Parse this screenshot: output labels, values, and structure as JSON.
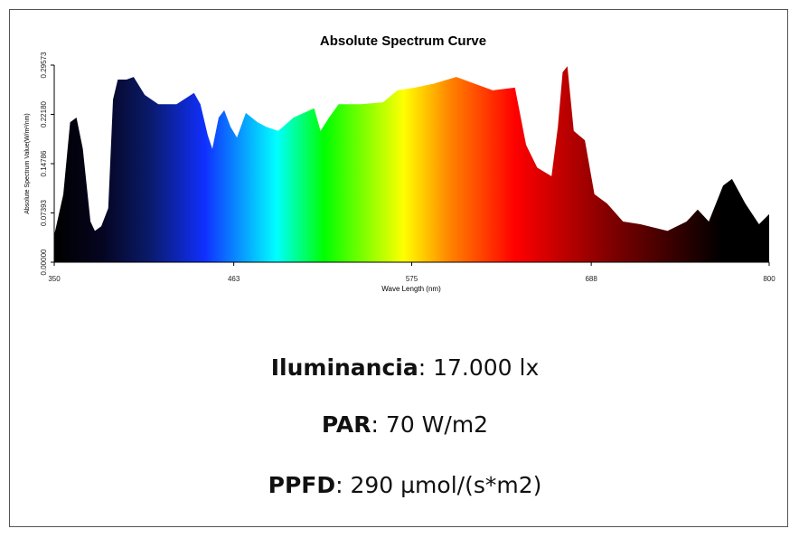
{
  "chart_data": {
    "type": "area",
    "title": "Absolute Spectrum Curve",
    "xlabel": "Wave Length (nm)",
    "ylabel": "Absolute Spectrum Value(W/m²/nm)",
    "x": [
      350,
      355.7,
      360,
      364,
      368,
      372.8,
      375.6,
      379.6,
      384,
      387,
      390,
      395.5,
      400,
      407,
      415.5,
      427,
      438,
      442,
      446.7,
      449.5,
      453.5,
      457,
      461,
      465,
      470.6,
      478,
      483.6,
      491,
      500.6,
      513.6,
      517.6,
      523,
      529,
      543,
      557,
      566,
      577,
      589,
      603,
      614.5,
      626,
      640,
      647,
      654,
      663,
      667,
      670,
      673,
      677,
      684,
      690,
      698,
      708,
      719,
      736,
      748,
      755,
      762,
      771,
      776.6,
      785,
      793.6,
      800
    ],
    "values": [
      0.0407,
      0.1017,
      0.21,
      0.217,
      0.17,
      0.061,
      0.047,
      0.054,
      0.081,
      0.244,
      0.274,
      0.274,
      0.278,
      0.251,
      0.237,
      0.237,
      0.254,
      0.237,
      0.19,
      0.17,
      0.217,
      0.228,
      0.203,
      0.187,
      0.224,
      0.21,
      0.203,
      0.197,
      0.217,
      0.231,
      0.197,
      0.217,
      0.237,
      0.237,
      0.24,
      0.258,
      0.262,
      0.268,
      0.278,
      0.268,
      0.258,
      0.262,
      0.176,
      0.142,
      0.129,
      0.203,
      0.285,
      0.294,
      0.197,
      0.183,
      0.102,
      0.088,
      0.061,
      0.057,
      0.047,
      0.061,
      0.079,
      0.061,
      0.115,
      0.125,
      0.088,
      0.057,
      0.072
    ],
    "gradient": [
      {
        "x": 350,
        "color": "#000000"
      },
      {
        "x": 380,
        "color": "#050520"
      },
      {
        "x": 410,
        "color": "#0a1a6a"
      },
      {
        "x": 445,
        "color": "#1030ff"
      },
      {
        "x": 490,
        "color": "#00ffff"
      },
      {
        "x": 520,
        "color": "#00ff00"
      },
      {
        "x": 570,
        "color": "#ffff00"
      },
      {
        "x": 600,
        "color": "#ff8000"
      },
      {
        "x": 640,
        "color": "#ff0000"
      },
      {
        "x": 700,
        "color": "#800000"
      },
      {
        "x": 770,
        "color": "#000000"
      },
      {
        "x": 800,
        "color": "#000000"
      }
    ],
    "xlim": [
      350,
      800
    ],
    "xticks": [
      350,
      463,
      575,
      688,
      800
    ],
    "ylim": [
      0,
      0.29573
    ],
    "yticks": [
      {
        "value": 0,
        "label": "0.00000"
      },
      {
        "value": 0.07393,
        "label": "0.07393"
      },
      {
        "value": 0.14786,
        "label": "0.14786"
      },
      {
        "value": 0.2218,
        "label": "0.22180"
      },
      {
        "value": 0.29573,
        "label": "0.29573"
      }
    ]
  },
  "readings": [
    {
      "label": "Iluminancia",
      "value": ": 17.000 lx"
    },
    {
      "label": "PAR",
      "value": ": 70 W/m2"
    },
    {
      "label": "PPFD",
      "value": ": 290 µmol/(s*m2)"
    }
  ]
}
